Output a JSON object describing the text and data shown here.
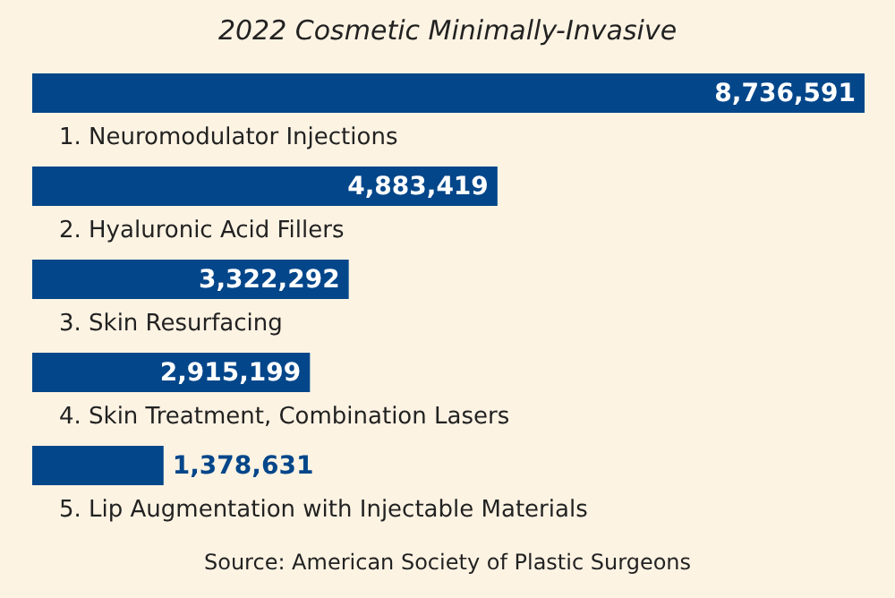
{
  "chart_data": {
    "type": "bar",
    "orientation": "horizontal",
    "title": "2022 Cosmetic Minimally-Invasive",
    "categories": [
      "1. Neuromodulator Injections",
      "2. Hyaluronic Acid Fillers",
      "3. Skin Resurfacing",
      "4. Skin Treatment, Combination Lasers",
      "5. Lip Augmentation with Injectable Materials"
    ],
    "values": [
      8736591,
      4883419,
      3322292,
      2915199,
      1378631
    ],
    "value_labels": [
      "8,736,591",
      "4,883,419",
      "3,322,292",
      "2,915,199",
      "1,378,631"
    ],
    "color": "#03468a",
    "annotations": [
      "Source: American Society of Plastic Surgeons"
    ]
  }
}
